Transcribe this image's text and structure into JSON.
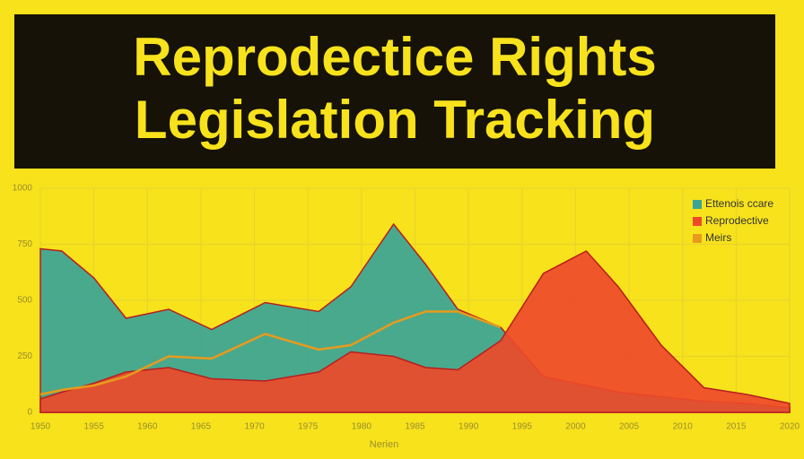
{
  "chart_data": {
    "type": "area",
    "title_lines": [
      "Reprodectice Rights",
      "Legislation Tracking"
    ],
    "x_label": "Nerien",
    "x": [
      1950,
      1952,
      1955,
      1958,
      1962,
      1966,
      1971,
      1976,
      1979,
      1983,
      1986,
      1989,
      1993,
      1997,
      2001,
      2004,
      2008,
      2012,
      2016,
      2020
    ],
    "xlim": [
      1950,
      2020
    ],
    "xticks": [
      1950,
      1955,
      1960,
      1965,
      1970,
      1975,
      1980,
      1985,
      1990,
      1995,
      2000,
      2005,
      2010,
      2015,
      2020
    ],
    "ylim": [
      0,
      1000
    ],
    "yticks": [
      0,
      250,
      500,
      750,
      1000
    ],
    "grid": true,
    "legend": "top-right",
    "series": [
      {
        "name": "Ettenois ccare",
        "color": "#3aa497",
        "style": "area",
        "values": [
          730,
          720,
          600,
          420,
          460,
          370,
          490,
          450,
          560,
          840,
          660,
          460,
          380,
          160,
          120,
          90,
          70,
          50,
          40,
          20
        ]
      },
      {
        "name": "Reprodective",
        "color": "#ee4a2a",
        "style": "area",
        "values": [
          60,
          90,
          130,
          180,
          200,
          150,
          140,
          180,
          270,
          250,
          200,
          190,
          320,
          620,
          720,
          560,
          300,
          110,
          80,
          40
        ]
      },
      {
        "name": "Meirs",
        "color": "#e89a1c",
        "style": "line",
        "values": [
          80,
          100,
          120,
          160,
          250,
          240,
          350,
          280,
          300,
          400,
          450,
          450,
          380,
          null,
          null,
          null,
          null,
          null,
          null,
          null
        ]
      }
    ]
  }
}
